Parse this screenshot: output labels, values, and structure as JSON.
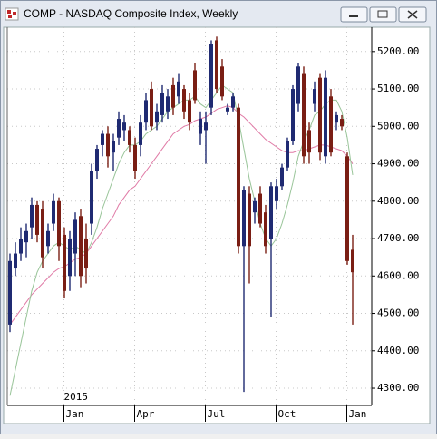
{
  "window": {
    "title": "COMP - NASDAQ Composite Index, Weekly"
  },
  "chart_data": {
    "type": "candlestick",
    "categories": [
      null,
      null,
      null,
      null,
      null,
      null,
      null,
      null,
      null,
      null,
      "Jan",
      null,
      null,
      null,
      null,
      null,
      null,
      null,
      null,
      null,
      null,
      null,
      null,
      "Apr",
      null,
      null,
      null,
      null,
      null,
      null,
      null,
      null,
      null,
      null,
      null,
      null,
      "Jul",
      null,
      null,
      null,
      null,
      null,
      null,
      null,
      null,
      null,
      null,
      null,
      null,
      "Oct",
      null,
      null,
      null,
      null,
      null,
      null,
      null,
      null,
      null,
      null,
      null,
      null,
      "Jan",
      null
    ],
    "year_label": "2015",
    "open": [
      4470,
      4620,
      4660,
      4690,
      4730,
      4790,
      4780,
      4680,
      4740,
      4800,
      4710,
      4600,
      4660,
      4760,
      4700,
      4740,
      4880,
      4950,
      4980,
      4930,
      4970,
      4990,
      4990,
      4950,
      4950,
      5010,
      5100,
      5010,
      5030,
      5040,
      5110,
      5080,
      5100,
      5070,
      5150,
      4980,
      4990,
      5050,
      5230,
      5160,
      5040,
      5050,
      5050,
      4680,
      4820,
      4770,
      4820,
      4770,
      4700,
      4800,
      4840,
      4890,
      4960,
      5060,
      5140,
      4990,
      5060,
      5130,
      4920,
      5080,
      5010,
      5020,
      4920,
      4670
    ],
    "high": [
      4660,
      4690,
      4730,
      4740,
      4810,
      4800,
      4800,
      4740,
      4820,
      4810,
      4730,
      4720,
      4770,
      4780,
      4740,
      4900,
      4950,
      4990,
      5000,
      4980,
      5040,
      5030,
      5000,
      4970,
      5030,
      5090,
      5120,
      5060,
      5110,
      5100,
      5130,
      5140,
      5110,
      5090,
      5170,
      5040,
      5040,
      5230,
      5240,
      5180,
      5060,
      5090,
      5060,
      4840,
      4840,
      4810,
      4840,
      4790,
      4850,
      4860,
      4900,
      4970,
      5110,
      5170,
      5160,
      5010,
      5120,
      5140,
      5150,
      5100,
      5040,
      5030,
      4930,
      4710
    ],
    "low": [
      4450,
      4600,
      4640,
      4650,
      4700,
      4690,
      4620,
      4660,
      4720,
      4640,
      4540,
      4560,
      4600,
      4570,
      4580,
      4710,
      4860,
      4920,
      4890,
      4880,
      4950,
      4960,
      4930,
      4860,
      4920,
      4990,
      4990,
      4990,
      5010,
      5020,
      5030,
      5060,
      5020,
      4990,
      5060,
      4950,
      4900,
      5030,
      5090,
      5070,
      5030,
      5040,
      4660,
      4290,
      4580,
      4740,
      4730,
      4660,
      4490,
      4780,
      4830,
      4880,
      4950,
      5040,
      4900,
      4900,
      5040,
      4910,
      4900,
      4920,
      4990,
      4990,
      4630,
      4470
    ],
    "close": [
      4640,
      4660,
      4700,
      4720,
      4790,
      4710,
      4650,
      4720,
      4800,
      4680,
      4560,
      4700,
      4750,
      4600,
      4620,
      4880,
      4940,
      4980,
      4920,
      4960,
      5020,
      5010,
      4950,
      4880,
      5010,
      5070,
      5000,
      5040,
      5090,
      5080,
      5050,
      5120,
      5040,
      5010,
      5070,
      5020,
      5010,
      5220,
      5100,
      5080,
      5050,
      5080,
      4680,
      4830,
      4680,
      4800,
      4740,
      4680,
      4840,
      4840,
      4890,
      4960,
      5100,
      5160,
      4920,
      4930,
      5100,
      4930,
      5130,
      4930,
      5030,
      5000,
      4640,
      4610
    ],
    "up_color": "#1f2a72",
    "down_color": "#7a1e14",
    "lines": [
      {
        "color": "#e07aa6",
        "values": [
          4470,
          4490,
          4510,
          4530,
          4550,
          4565,
          4580,
          4595,
          4610,
          4620,
          4625,
          4635,
          4645,
          4650,
          4660,
          4680,
          4700,
          4720,
          4740,
          4760,
          4790,
          4810,
          4830,
          4840,
          4860,
          4880,
          4900,
          4920,
          4940,
          4960,
          4980,
          4990,
          5000,
          5005,
          5015,
          5020,
          5025,
          5035,
          5045,
          5050,
          5055,
          5050,
          5035,
          5025,
          5010,
          4995,
          4980,
          4965,
          4955,
          4945,
          4935,
          4930,
          4930,
          4935,
          4935,
          4940,
          4945,
          4950,
          4950,
          4945,
          4940,
          4935,
          4920,
          4900
        ]
      },
      {
        "color": "#98c498",
        "values": [
          4280,
          4350,
          4420,
          4490,
          4560,
          4610,
          4640,
          4660,
          4680,
          4690,
          4680,
          4670,
          4680,
          4670,
          4660,
          4690,
          4730,
          4780,
          4820,
          4860,
          4900,
          4930,
          4950,
          4950,
          4960,
          4980,
          4990,
          5000,
          5020,
          5040,
          5050,
          5060,
          5070,
          5070,
          5080,
          5060,
          5050,
          5070,
          5090,
          5110,
          5100,
          5090,
          5020,
          4940,
          4860,
          4800,
          4740,
          4700,
          4680,
          4700,
          4740,
          4790,
          4850,
          4920,
          4960,
          4990,
          5030,
          5040,
          5060,
          5070,
          5070,
          5040,
          4970,
          4870
        ]
      }
    ],
    "ylim": [
      4254,
      5265
    ],
    "yticks": [
      {
        "value": 4300,
        "label": "4300.00"
      },
      {
        "value": 4400,
        "label": "4400.00"
      },
      {
        "value": 4500,
        "label": "4500.00"
      },
      {
        "value": 4600,
        "label": "4600.00"
      },
      {
        "value": 4700,
        "label": "4700.00"
      },
      {
        "value": 4800,
        "label": "4800.00"
      },
      {
        "value": 4900,
        "label": "4900.00"
      },
      {
        "value": 5000,
        "label": "5000.00"
      },
      {
        "value": 5100,
        "label": "5100.00"
      },
      {
        "value": 5200,
        "label": "5200.00"
      }
    ],
    "grid": true
  }
}
